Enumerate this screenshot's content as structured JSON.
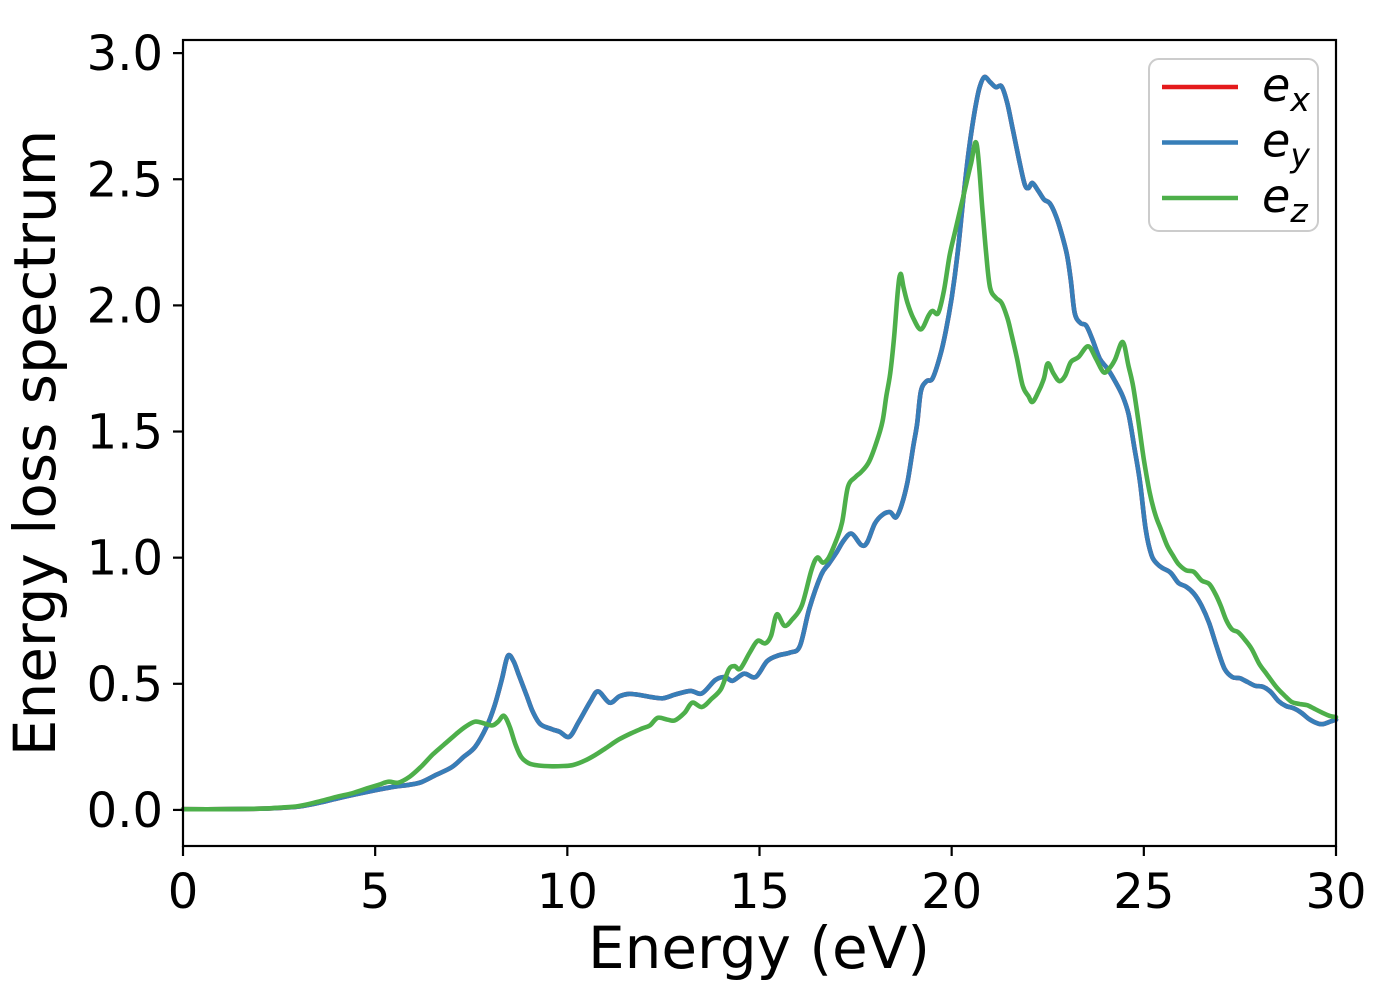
{
  "chart_data": {
    "type": "line",
    "title": "",
    "xlabel": "Energy (eV)",
    "ylabel": "Energy loss spectrum",
    "xlim": [
      0,
      30
    ],
    "ylim": [
      -0.143,
      3.052
    ],
    "xticks": [
      0,
      5,
      10,
      15,
      20,
      25,
      30
    ],
    "xtick_labels": [
      "0",
      "5",
      "10",
      "15",
      "20",
      "25",
      "30"
    ],
    "yticks": [
      0.0,
      0.5,
      1.0,
      1.5,
      2.0,
      2.5,
      3.0
    ],
    "ytick_labels": [
      "0.0",
      "0.5",
      "1.0",
      "1.5",
      "2.0",
      "2.5",
      "3.0"
    ],
    "grid": false,
    "background_color": "#ffffff",
    "axis_color": "#000000",
    "legend": {
      "position": "upper right",
      "frame_color": "#cccccc",
      "items": [
        {
          "label_base": "e",
          "label_sub": "x",
          "color": "#e41a1c"
        },
        {
          "label_base": "e",
          "label_sub": "y",
          "color": "#377eb8"
        },
        {
          "label_base": "e",
          "label_sub": "z",
          "color": "#4daf4a"
        }
      ]
    },
    "series": [
      {
        "name": "e_x",
        "color": "#e41a1c",
        "coincides_with": "e_y",
        "note": "red curve is fully hidden beneath the e_y curve (identical spectrum)",
        "points": []
      },
      {
        "name": "e_y",
        "color": "#377eb8",
        "points": [
          [
            0,
            0.003
          ],
          [
            1,
            0.003
          ],
          [
            2,
            0.005
          ],
          [
            2.5,
            0.008
          ],
          [
            3,
            0.013
          ],
          [
            3.5,
            0.027
          ],
          [
            4,
            0.045
          ],
          [
            4.5,
            0.062
          ],
          [
            5,
            0.078
          ],
          [
            5.5,
            0.092
          ],
          [
            5.9,
            0.1
          ],
          [
            6.2,
            0.11
          ],
          [
            6.6,
            0.14
          ],
          [
            7,
            0.17
          ],
          [
            7.3,
            0.21
          ],
          [
            7.6,
            0.25
          ],
          [
            7.9,
            0.33
          ],
          [
            8.1,
            0.41
          ],
          [
            8.3,
            0.52
          ],
          [
            8.45,
            0.61
          ],
          [
            8.6,
            0.59
          ],
          [
            8.75,
            0.53
          ],
          [
            8.95,
            0.45
          ],
          [
            9.1,
            0.39
          ],
          [
            9.3,
            0.34
          ],
          [
            9.6,
            0.32
          ],
          [
            9.8,
            0.31
          ],
          [
            10.05,
            0.29
          ],
          [
            10.3,
            0.35
          ],
          [
            10.6,
            0.43
          ],
          [
            10.8,
            0.47
          ],
          [
            11.1,
            0.425
          ],
          [
            11.35,
            0.45
          ],
          [
            11.6,
            0.46
          ],
          [
            11.9,
            0.455
          ],
          [
            12.2,
            0.447
          ],
          [
            12.5,
            0.443
          ],
          [
            12.8,
            0.457
          ],
          [
            13.2,
            0.472
          ],
          [
            13.5,
            0.462
          ],
          [
            13.85,
            0.515
          ],
          [
            14.1,
            0.527
          ],
          [
            14.3,
            0.512
          ],
          [
            14.6,
            0.54
          ],
          [
            14.9,
            0.527
          ],
          [
            15.2,
            0.59
          ],
          [
            15.5,
            0.613
          ],
          [
            15.8,
            0.624
          ],
          [
            16.05,
            0.65
          ],
          [
            16.3,
            0.8
          ],
          [
            16.6,
            0.93
          ],
          [
            16.8,
            0.975
          ],
          [
            17,
            1.02
          ],
          [
            17.2,
            1.07
          ],
          [
            17.4,
            1.095
          ],
          [
            17.65,
            1.05
          ],
          [
            17.8,
            1.06
          ],
          [
            18,
            1.135
          ],
          [
            18.2,
            1.17
          ],
          [
            18.4,
            1.18
          ],
          [
            18.55,
            1.16
          ],
          [
            18.7,
            1.21
          ],
          [
            18.85,
            1.3
          ],
          [
            19,
            1.44
          ],
          [
            19.1,
            1.53
          ],
          [
            19.2,
            1.66
          ],
          [
            19.35,
            1.7
          ],
          [
            19.5,
            1.71
          ],
          [
            19.7,
            1.8
          ],
          [
            19.85,
            1.9
          ],
          [
            20,
            2.03
          ],
          [
            20.15,
            2.2
          ],
          [
            20.3,
            2.42
          ],
          [
            20.45,
            2.62
          ],
          [
            20.6,
            2.77
          ],
          [
            20.72,
            2.86
          ],
          [
            20.85,
            2.905
          ],
          [
            21,
            2.885
          ],
          [
            21.15,
            2.865
          ],
          [
            21.3,
            2.868
          ],
          [
            21.45,
            2.8
          ],
          [
            21.6,
            2.69
          ],
          [
            21.75,
            2.58
          ],
          [
            21.9,
            2.48
          ],
          [
            22,
            2.465
          ],
          [
            22.1,
            2.485
          ],
          [
            22.25,
            2.455
          ],
          [
            22.4,
            2.42
          ],
          [
            22.55,
            2.405
          ],
          [
            22.7,
            2.36
          ],
          [
            22.85,
            2.29
          ],
          [
            23,
            2.2
          ],
          [
            23.1,
            2.1
          ],
          [
            23.2,
            1.97
          ],
          [
            23.35,
            1.93
          ],
          [
            23.5,
            1.92
          ],
          [
            23.65,
            1.87
          ],
          [
            23.85,
            1.79
          ],
          [
            24.05,
            1.75
          ],
          [
            24.25,
            1.7
          ],
          [
            24.45,
            1.64
          ],
          [
            24.6,
            1.57
          ],
          [
            24.75,
            1.44
          ],
          [
            24.9,
            1.3
          ],
          [
            25.05,
            1.11
          ],
          [
            25.2,
            1.01
          ],
          [
            25.35,
            0.975
          ],
          [
            25.5,
            0.958
          ],
          [
            25.7,
            0.94
          ],
          [
            25.9,
            0.9
          ],
          [
            26.1,
            0.885
          ],
          [
            26.3,
            0.858
          ],
          [
            26.5,
            0.81
          ],
          [
            26.7,
            0.74
          ],
          [
            26.9,
            0.645
          ],
          [
            27.1,
            0.56
          ],
          [
            27.3,
            0.527
          ],
          [
            27.5,
            0.522
          ],
          [
            27.7,
            0.507
          ],
          [
            27.9,
            0.492
          ],
          [
            28.1,
            0.488
          ],
          [
            28.3,
            0.468
          ],
          [
            28.5,
            0.432
          ],
          [
            28.7,
            0.412
          ],
          [
            28.9,
            0.403
          ],
          [
            29.1,
            0.385
          ],
          [
            29.3,
            0.36
          ],
          [
            29.5,
            0.344
          ],
          [
            29.65,
            0.34
          ],
          [
            29.85,
            0.35
          ],
          [
            30,
            0.358
          ]
        ]
      },
      {
        "name": "e_z",
        "color": "#4daf4a",
        "points": [
          [
            0,
            0.003
          ],
          [
            1,
            0.003
          ],
          [
            2,
            0.005
          ],
          [
            2.5,
            0.009
          ],
          [
            3,
            0.015
          ],
          [
            3.5,
            0.032
          ],
          [
            4,
            0.052
          ],
          [
            4.4,
            0.066
          ],
          [
            4.8,
            0.086
          ],
          [
            5.1,
            0.1
          ],
          [
            5.35,
            0.112
          ],
          [
            5.6,
            0.108
          ],
          [
            5.9,
            0.132
          ],
          [
            6.2,
            0.172
          ],
          [
            6.5,
            0.22
          ],
          [
            6.8,
            0.26
          ],
          [
            7.1,
            0.3
          ],
          [
            7.35,
            0.33
          ],
          [
            7.6,
            0.35
          ],
          [
            7.85,
            0.342
          ],
          [
            8.05,
            0.335
          ],
          [
            8.2,
            0.35
          ],
          [
            8.35,
            0.373
          ],
          [
            8.5,
            0.33
          ],
          [
            8.65,
            0.26
          ],
          [
            8.8,
            0.21
          ],
          [
            9,
            0.185
          ],
          [
            9.25,
            0.176
          ],
          [
            9.6,
            0.173
          ],
          [
            9.9,
            0.174
          ],
          [
            10.15,
            0.178
          ],
          [
            10.45,
            0.195
          ],
          [
            10.75,
            0.22
          ],
          [
            11.05,
            0.25
          ],
          [
            11.35,
            0.28
          ],
          [
            11.65,
            0.303
          ],
          [
            11.95,
            0.323
          ],
          [
            12.15,
            0.335
          ],
          [
            12.35,
            0.365
          ],
          [
            12.6,
            0.358
          ],
          [
            12.8,
            0.355
          ],
          [
            13.05,
            0.385
          ],
          [
            13.25,
            0.425
          ],
          [
            13.5,
            0.408
          ],
          [
            13.75,
            0.44
          ],
          [
            14,
            0.48
          ],
          [
            14.2,
            0.557
          ],
          [
            14.35,
            0.57
          ],
          [
            14.5,
            0.56
          ],
          [
            14.75,
            0.625
          ],
          [
            14.95,
            0.67
          ],
          [
            15.15,
            0.66
          ],
          [
            15.3,
            0.69
          ],
          [
            15.45,
            0.775
          ],
          [
            15.65,
            0.73
          ],
          [
            15.85,
            0.755
          ],
          [
            16.1,
            0.81
          ],
          [
            16.35,
            0.95
          ],
          [
            16.5,
            1.0
          ],
          [
            16.65,
            0.98
          ],
          [
            16.8,
            1.0
          ],
          [
            17,
            1.07
          ],
          [
            17.15,
            1.14
          ],
          [
            17.3,
            1.28
          ],
          [
            17.5,
            1.32
          ],
          [
            17.65,
            1.34
          ],
          [
            17.85,
            1.38
          ],
          [
            18.05,
            1.46
          ],
          [
            18.2,
            1.54
          ],
          [
            18.3,
            1.64
          ],
          [
            18.4,
            1.73
          ],
          [
            18.5,
            1.87
          ],
          [
            18.6,
            2.06
          ],
          [
            18.67,
            2.125
          ],
          [
            18.75,
            2.07
          ],
          [
            18.85,
            2.01
          ],
          [
            19,
            1.95
          ],
          [
            19.2,
            1.905
          ],
          [
            19.4,
            1.96
          ],
          [
            19.5,
            1.978
          ],
          [
            19.65,
            1.97
          ],
          [
            19.8,
            2.06
          ],
          [
            19.95,
            2.2
          ],
          [
            20.1,
            2.3
          ],
          [
            20.3,
            2.43
          ],
          [
            20.5,
            2.56
          ],
          [
            20.65,
            2.64
          ],
          [
            20.8,
            2.38
          ],
          [
            20.9,
            2.2
          ],
          [
            21,
            2.07
          ],
          [
            21.15,
            2.03
          ],
          [
            21.3,
            2.01
          ],
          [
            21.45,
            1.95
          ],
          [
            21.55,
            1.89
          ],
          [
            21.7,
            1.79
          ],
          [
            21.85,
            1.68
          ],
          [
            22,
            1.64
          ],
          [
            22.1,
            1.617
          ],
          [
            22.25,
            1.655
          ],
          [
            22.4,
            1.71
          ],
          [
            22.5,
            1.77
          ],
          [
            22.65,
            1.73
          ],
          [
            22.8,
            1.7
          ],
          [
            22.95,
            1.72
          ],
          [
            23.1,
            1.775
          ],
          [
            23.3,
            1.795
          ],
          [
            23.55,
            1.838
          ],
          [
            23.75,
            1.79
          ],
          [
            23.95,
            1.735
          ],
          [
            24.1,
            1.75
          ],
          [
            24.25,
            1.785
          ],
          [
            24.45,
            1.855
          ],
          [
            24.6,
            1.76
          ],
          [
            24.72,
            1.68
          ],
          [
            24.85,
            1.55
          ],
          [
            25,
            1.39
          ],
          [
            25.15,
            1.26
          ],
          [
            25.3,
            1.17
          ],
          [
            25.45,
            1.11
          ],
          [
            25.6,
            1.05
          ],
          [
            25.75,
            1.01
          ],
          [
            25.9,
            0.975
          ],
          [
            26.1,
            0.95
          ],
          [
            26.3,
            0.944
          ],
          [
            26.5,
            0.91
          ],
          [
            26.7,
            0.896
          ],
          [
            26.85,
            0.86
          ],
          [
            27,
            0.81
          ],
          [
            27.15,
            0.75
          ],
          [
            27.3,
            0.715
          ],
          [
            27.45,
            0.705
          ],
          [
            27.6,
            0.68
          ],
          [
            27.8,
            0.64
          ],
          [
            28,
            0.58
          ],
          [
            28.2,
            0.538
          ],
          [
            28.45,
            0.487
          ],
          [
            28.65,
            0.455
          ],
          [
            28.85,
            0.428
          ],
          [
            29.05,
            0.42
          ],
          [
            29.25,
            0.415
          ],
          [
            29.45,
            0.4
          ],
          [
            29.65,
            0.385
          ],
          [
            29.85,
            0.372
          ],
          [
            30,
            0.368
          ]
        ]
      }
    ]
  }
}
